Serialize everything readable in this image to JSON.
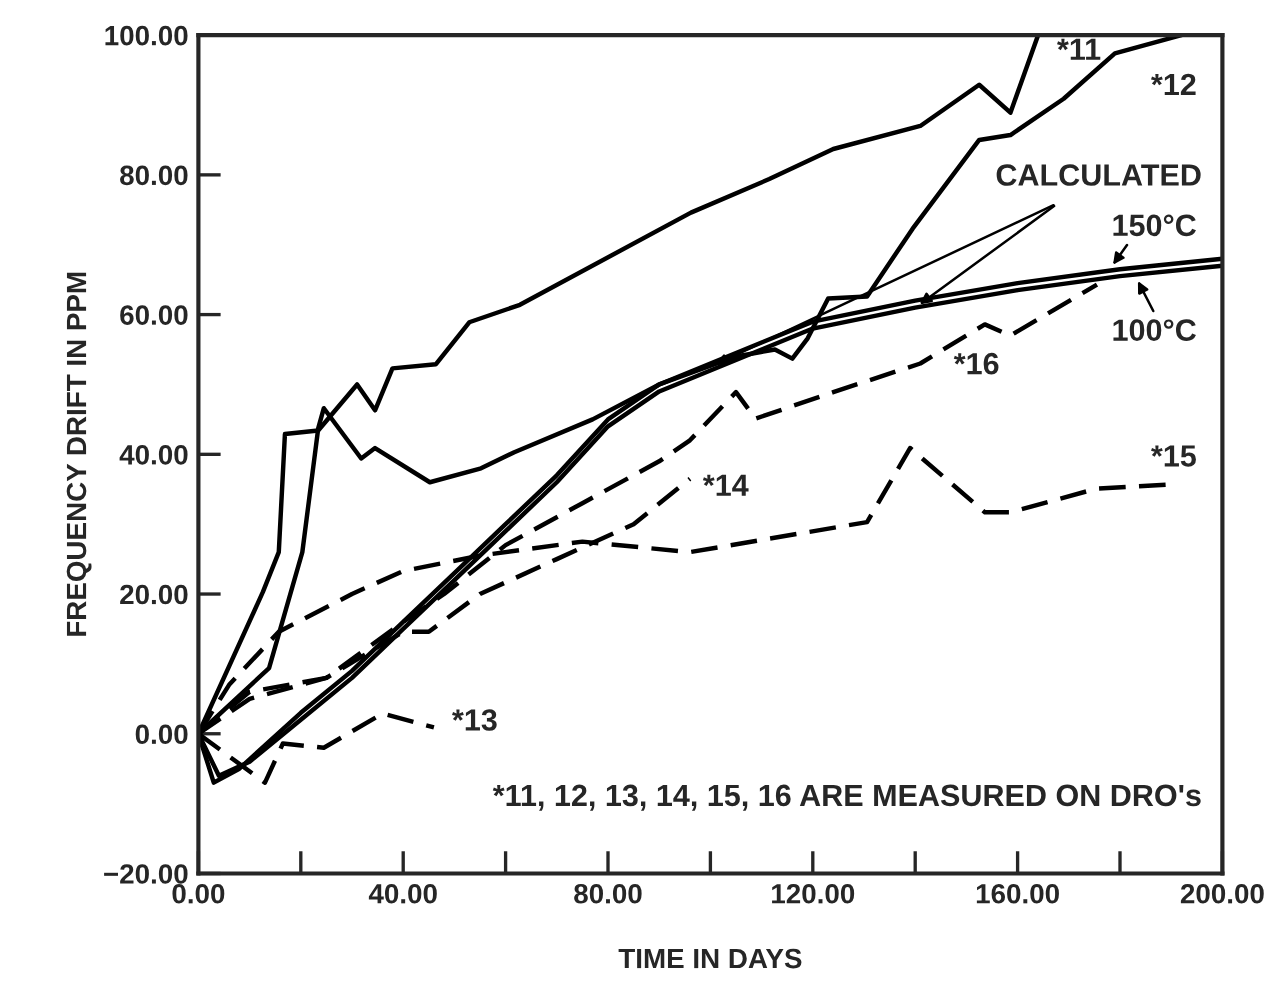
{
  "chart_data": {
    "type": "line",
    "xlabel": "TIME IN DAYS",
    "ylabel": "FREQUENCY DRIFT IN PPM",
    "xlim": [
      0,
      200
    ],
    "ylim": [
      -20,
      100
    ],
    "xticks": [
      {
        "value": 0,
        "label": "0.00"
      },
      {
        "value": 20,
        "label": null
      },
      {
        "value": 40,
        "label": "40.00"
      },
      {
        "value": 60,
        "label": null
      },
      {
        "value": 80,
        "label": "80.00"
      },
      {
        "value": 100,
        "label": null
      },
      {
        "value": 120,
        "label": "120.00"
      },
      {
        "value": 140,
        "label": null
      },
      {
        "value": 160,
        "label": "160.00"
      },
      {
        "value": 180,
        "label": null
      },
      {
        "value": 200,
        "label": "200.00"
      }
    ],
    "yticks": [
      {
        "value": -20,
        "label": "−20.00"
      },
      {
        "value": 0,
        "label": "0.00"
      },
      {
        "value": 20,
        "label": "20.00"
      },
      {
        "value": 40,
        "label": "40.00"
      },
      {
        "value": 60,
        "label": "60.00"
      },
      {
        "value": 80,
        "label": "80.00"
      },
      {
        "value": 100,
        "label": "100.00"
      }
    ],
    "grid": false,
    "marker": "none",
    "series": [
      {
        "color": "#000000",
        "line_style": "solid",
        "x": [
          0,
          12.6,
          15.7,
          16.9,
          23.4,
          31,
          34.5,
          37.9,
          46.4,
          52.9,
          62.8,
          96.2,
          111.5,
          124,
          141,
          152.5,
          158.6,
          164
        ],
        "values": [
          0,
          20.3,
          26,
          42.9,
          43.4,
          50,
          46.3,
          52.3,
          52.9,
          58.9,
          61.4,
          74.6,
          79.4,
          83.7,
          87,
          92.9,
          88.9,
          100
        ]
      },
      {
        "color": "#000000",
        "line_style": "solid",
        "x": [
          0,
          13.8,
          20.3,
          23.4,
          24.5,
          31.8,
          34.5,
          45.2,
          55.2,
          61.7,
          77,
          90,
          105,
          112.6,
          116,
          119,
          123,
          130.6,
          139.5,
          152.5,
          158.6,
          169,
          179,
          192
        ],
        "values": [
          0,
          9.4,
          26,
          43.7,
          46.6,
          39.4,
          40.9,
          36,
          38,
          40.3,
          45,
          50,
          54,
          55,
          53.7,
          56.6,
          62.3,
          62.6,
          72.3,
          85,
          85.7,
          90.9,
          97.4,
          100
        ]
      },
      {
        "color": "#000000",
        "line_style": "solid",
        "x": [
          0,
          3,
          8,
          20,
          30,
          40,
          50,
          60,
          70,
          80,
          90,
          100,
          110,
          120,
          140,
          160,
          180,
          200
        ],
        "values": [
          0,
          -7,
          -5,
          3,
          9,
          16,
          23,
          30,
          37,
          45,
          50,
          53,
          56,
          59,
          62,
          64.5,
          66.5,
          68
        ]
      },
      {
        "color": "#000000",
        "line_style": "solid",
        "x": [
          0,
          4,
          10,
          20,
          30,
          40,
          50,
          60,
          70,
          80,
          90,
          100,
          110,
          120,
          140,
          160,
          180,
          200
        ],
        "values": [
          0,
          -6,
          -4,
          2,
          8,
          15,
          22,
          29,
          36,
          44,
          49,
          52,
          55,
          58,
          61,
          63.5,
          65.5,
          67
        ]
      },
      {
        "color": "#000000",
        "line_style": "dashed",
        "x": [
          0,
          13,
          16.5,
          24.5,
          36,
          46
        ],
        "values": [
          0,
          -7,
          -1.4,
          -2,
          2.9,
          0.9
        ]
      },
      {
        "color": "#000000",
        "line_style": "dashed",
        "x": [
          0,
          10,
          25,
          40,
          45,
          55,
          70,
          85,
          96
        ],
        "values": [
          0,
          5,
          8,
          14.6,
          14.6,
          20,
          25,
          30,
          36.5
        ]
      },
      {
        "color": "#000000",
        "line_style": "dashed",
        "x": [
          0,
          6,
          15.7,
          30,
          40,
          55,
          75,
          96,
          130.6,
          139,
          153.6,
          158.6,
          175.5,
          190
        ],
        "values": [
          0,
          7,
          14.6,
          20,
          23.3,
          25.5,
          27.5,
          26,
          30.3,
          40.9,
          31.7,
          31.7,
          35.1,
          35.7
        ]
      },
      {
        "color": "#000000",
        "line_style": "dashed",
        "x": [
          0,
          10,
          25,
          40,
          48,
          60,
          75,
          90,
          96,
          105,
          108.8,
          124,
          141,
          153.6,
          158.6,
          175.5
        ],
        "values": [
          0,
          6,
          8,
          16,
          20,
          27,
          33,
          39,
          42,
          48.9,
          45.1,
          48.9,
          53,
          58.6,
          57,
          64.3
        ]
      }
    ],
    "annotations": [
      "*11",
      "*12",
      "*13",
      "*14",
      "*15",
      "*16",
      {
        "text": "CALCULATED",
        "x": 140,
        "y": 61
      },
      "150°C",
      "100°C",
      "*11, 12, 13, 14, 15, 16 ARE MEASURED ON DRO's"
    ]
  }
}
